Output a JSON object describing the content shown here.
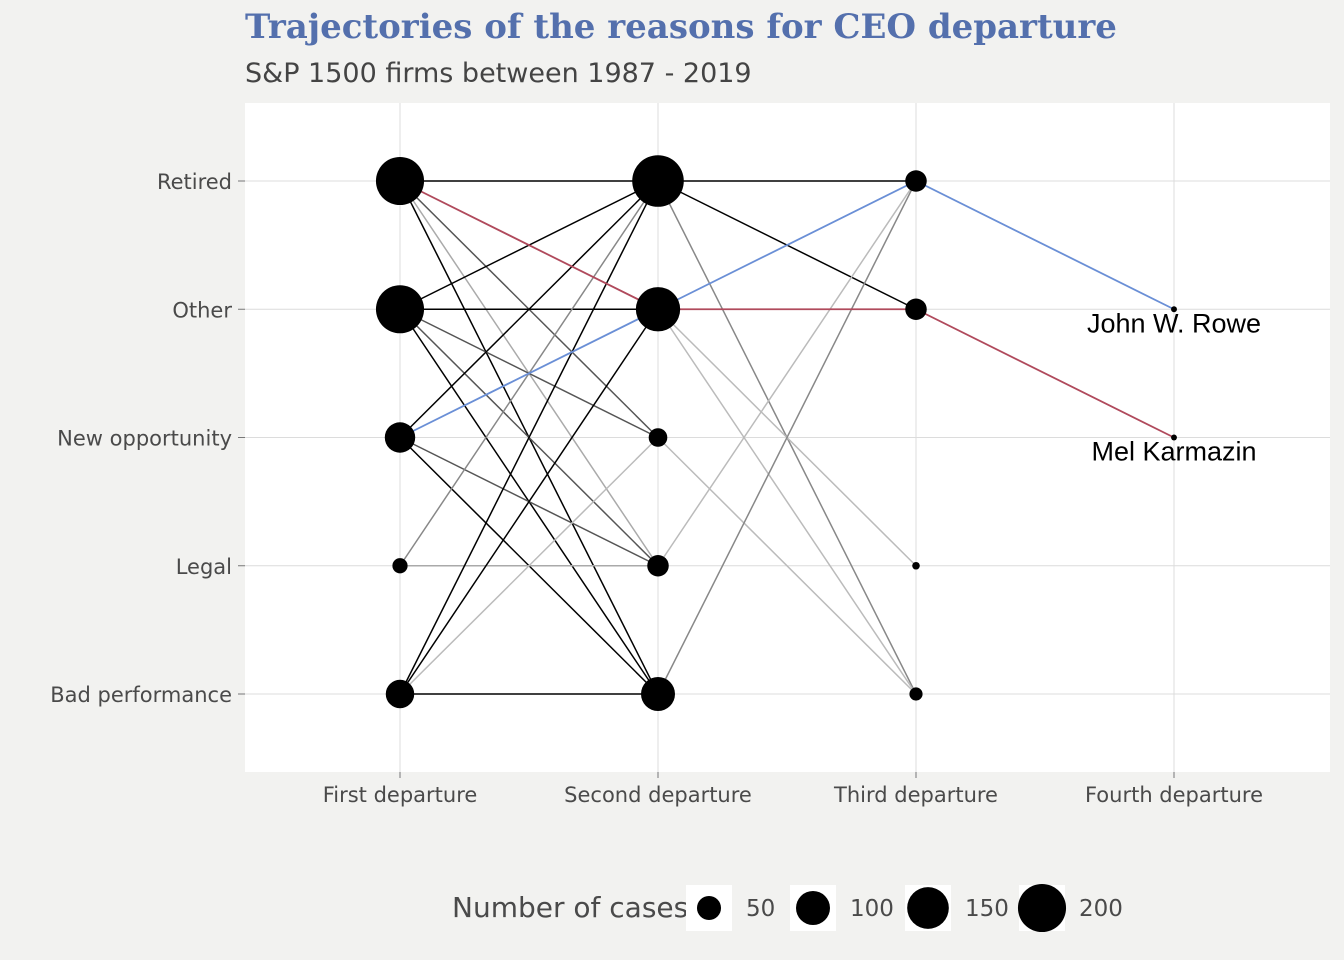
{
  "chart_data": {
    "type": "line",
    "title": "Trajectories of the reasons for CEO departure",
    "subtitle": "S&P 1500 firms between 1987 - 2019",
    "x_categories": [
      "First departure",
      "Second departure",
      "Third departure",
      "Fourth departure"
    ],
    "y_categories": [
      "Retired",
      "Other",
      "New opportunity",
      "Legal",
      "Bad performance"
    ],
    "grid": true,
    "nodes": [
      {
        "x": "First departure",
        "y": "Retired",
        "cases": 200
      },
      {
        "x": "First departure",
        "y": "Other",
        "cases": 200
      },
      {
        "x": "First departure",
        "y": "New opportunity",
        "cases": 80
      },
      {
        "x": "First departure",
        "y": "Legal",
        "cases": 20
      },
      {
        "x": "First departure",
        "y": "Bad performance",
        "cases": 70
      },
      {
        "x": "Second departure",
        "y": "Retired",
        "cases": 230
      },
      {
        "x": "Second departure",
        "y": "Other",
        "cases": 170
      },
      {
        "x": "Second departure",
        "y": "New opportunity",
        "cases": 30
      },
      {
        "x": "Second departure",
        "y": "Legal",
        "cases": 40
      },
      {
        "x": "Second departure",
        "y": "Bad performance",
        "cases": 100
      },
      {
        "x": "Third departure",
        "y": "Retired",
        "cases": 40
      },
      {
        "x": "Third departure",
        "y": "Other",
        "cases": 40
      },
      {
        "x": "Third departure",
        "y": "Legal",
        "cases": 5
      },
      {
        "x": "Third departure",
        "y": "Bad performance",
        "cases": 15
      },
      {
        "x": "Fourth departure",
        "y": "Other",
        "cases": 3
      },
      {
        "x": "Fourth departure",
        "y": "New opportunity",
        "cases": 3
      }
    ],
    "transitions": [
      {
        "from": [
          "First departure",
          "Retired"
        ],
        "to": [
          "Second departure",
          "Retired"
        ],
        "shade": "#000000"
      },
      {
        "from": [
          "First departure",
          "Retired"
        ],
        "to": [
          "Second departure",
          "New opportunity"
        ],
        "shade": "#555555"
      },
      {
        "from": [
          "First departure",
          "Retired"
        ],
        "to": [
          "Second departure",
          "Legal"
        ],
        "shade": "#aaaaaa"
      },
      {
        "from": [
          "First departure",
          "Retired"
        ],
        "to": [
          "Second departure",
          "Bad performance"
        ],
        "shade": "#000000"
      },
      {
        "from": [
          "First departure",
          "Other"
        ],
        "to": [
          "Second departure",
          "Retired"
        ],
        "shade": "#000000"
      },
      {
        "from": [
          "First departure",
          "Other"
        ],
        "to": [
          "Second departure",
          "Other"
        ],
        "shade": "#000000"
      },
      {
        "from": [
          "First departure",
          "Other"
        ],
        "to": [
          "Second departure",
          "New opportunity"
        ],
        "shade": "#555555"
      },
      {
        "from": [
          "First departure",
          "Other"
        ],
        "to": [
          "Second departure",
          "Legal"
        ],
        "shade": "#555555"
      },
      {
        "from": [
          "First departure",
          "Other"
        ],
        "to": [
          "Second departure",
          "Bad performance"
        ],
        "shade": "#000000"
      },
      {
        "from": [
          "First departure",
          "New opportunity"
        ],
        "to": [
          "Second departure",
          "Retired"
        ],
        "shade": "#000000"
      },
      {
        "from": [
          "First departure",
          "New opportunity"
        ],
        "to": [
          "Second departure",
          "Legal"
        ],
        "shade": "#555555"
      },
      {
        "from": [
          "First departure",
          "New opportunity"
        ],
        "to": [
          "Second departure",
          "Bad performance"
        ],
        "shade": "#000000"
      },
      {
        "from": [
          "First departure",
          "Legal"
        ],
        "to": [
          "Second departure",
          "Retired"
        ],
        "shade": "#888888"
      },
      {
        "from": [
          "First departure",
          "Legal"
        ],
        "to": [
          "Second departure",
          "Legal"
        ],
        "shade": "#aaaaaa"
      },
      {
        "from": [
          "First departure",
          "Bad performance"
        ],
        "to": [
          "Second departure",
          "Retired"
        ],
        "shade": "#000000"
      },
      {
        "from": [
          "First departure",
          "Bad performance"
        ],
        "to": [
          "Second departure",
          "Other"
        ],
        "shade": "#000000"
      },
      {
        "from": [
          "First departure",
          "Bad performance"
        ],
        "to": [
          "Second departure",
          "New opportunity"
        ],
        "shade": "#bbbbbb"
      },
      {
        "from": [
          "First departure",
          "Bad performance"
        ],
        "to": [
          "Second departure",
          "Bad performance"
        ],
        "shade": "#000000"
      },
      {
        "from": [
          "Second departure",
          "Retired"
        ],
        "to": [
          "Third departure",
          "Retired"
        ],
        "shade": "#000000"
      },
      {
        "from": [
          "Second departure",
          "Retired"
        ],
        "to": [
          "Third departure",
          "Other"
        ],
        "shade": "#000000"
      },
      {
        "from": [
          "Second departure",
          "Retired"
        ],
        "to": [
          "Third departure",
          "Bad performance"
        ],
        "shade": "#888888"
      },
      {
        "from": [
          "Second departure",
          "Other"
        ],
        "to": [
          "Third departure",
          "Legal"
        ],
        "shade": "#bbbbbb"
      },
      {
        "from": [
          "Second departure",
          "Other"
        ],
        "to": [
          "Third departure",
          "Bad performance"
        ],
        "shade": "#bbbbbb"
      },
      {
        "from": [
          "Second departure",
          "New opportunity"
        ],
        "to": [
          "Third departure",
          "Bad performance"
        ],
        "shade": "#bbbbbb"
      },
      {
        "from": [
          "Second departure",
          "Legal"
        ],
        "to": [
          "Third departure",
          "Retired"
        ],
        "shade": "#bbbbbb"
      },
      {
        "from": [
          "Second departure",
          "Bad performance"
        ],
        "to": [
          "Third departure",
          "Retired"
        ],
        "shade": "#888888"
      }
    ],
    "highlighted_paths": [
      {
        "name": "John W. Rowe",
        "color": "#6a8fd6",
        "points": [
          [
            "First departure",
            "New opportunity"
          ],
          [
            "Second departure",
            "Other"
          ],
          [
            "Third departure",
            "Retired"
          ],
          [
            "Fourth departure",
            "Other"
          ]
        ]
      },
      {
        "name": "Mel Karmazin",
        "color": "#b04a5c",
        "points": [
          [
            "First departure",
            "Retired"
          ],
          [
            "Second departure",
            "Other"
          ],
          [
            "Third departure",
            "Other"
          ],
          [
            "Fourth departure",
            "New opportunity"
          ]
        ]
      }
    ],
    "legend": {
      "title": "Number of cases",
      "position": "bottom",
      "entries": [
        50,
        100,
        150,
        200
      ]
    }
  }
}
